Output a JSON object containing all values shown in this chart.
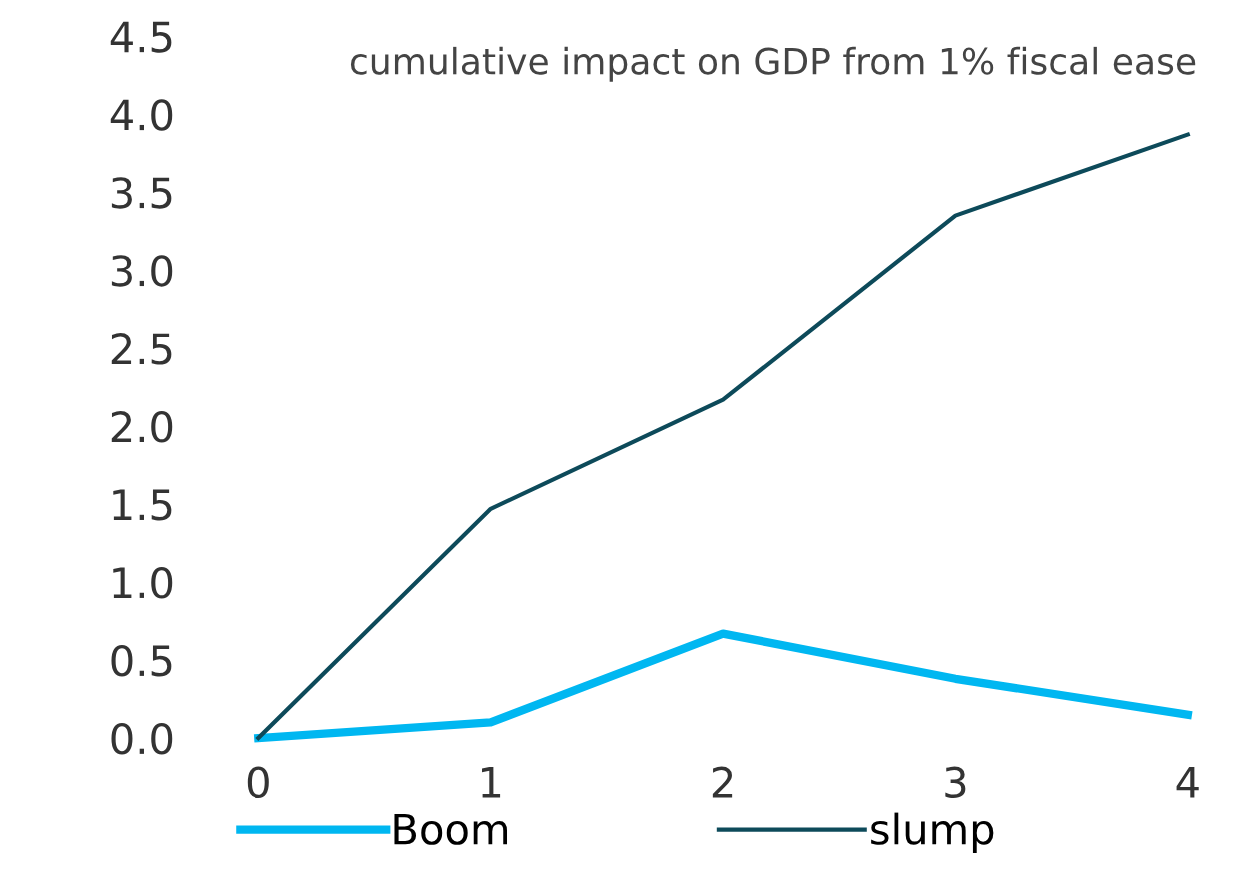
{
  "chart_data": {
    "type": "line",
    "title": "cumulative impact on GDP from 1% fiscal ease",
    "x": [
      0,
      1,
      2,
      3,
      4
    ],
    "series": [
      {
        "name": "Boom",
        "color": "#00b7f1",
        "values": [
          0,
          0.1,
          0.67,
          0.38,
          0.15
        ]
      },
      {
        "name": "slump",
        "color": "#0d4a5a",
        "values": [
          0,
          1.47,
          2.17,
          3.35,
          3.87
        ]
      }
    ],
    "xlim": [
      0,
      4
    ],
    "xticks": [
      0,
      1,
      2,
      3,
      4
    ],
    "ylim": [
      0,
      4.5
    ],
    "yticks": [
      {
        "value": 0,
        "label": "0.0"
      },
      {
        "value": 0.5,
        "label": "0.5"
      },
      {
        "value": 1,
        "label": "1.0"
      },
      {
        "value": 1.5,
        "label": "1.5"
      },
      {
        "value": 2,
        "label": "2.0"
      },
      {
        "value": 2.5,
        "label": "2.5"
      },
      {
        "value": 3,
        "label": "3.0"
      },
      {
        "value": 3.5,
        "label": "3.5"
      },
      {
        "value": 4,
        "label": "4.0"
      },
      {
        "value": 4.5,
        "label": "4.5"
      }
    ],
    "grid": false,
    "legend": "bottom",
    "marker": "none",
    "line_style": "solid"
  }
}
